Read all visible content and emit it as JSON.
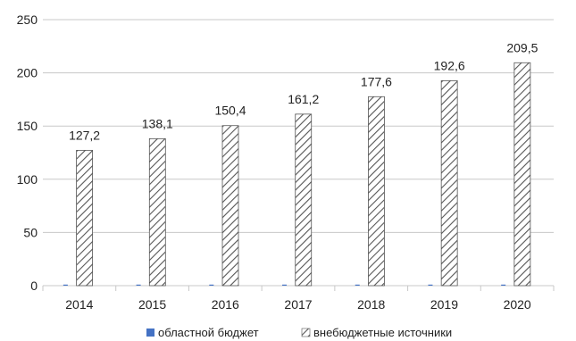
{
  "chart_data": {
    "type": "bar",
    "title": "",
    "xlabel": "",
    "ylabel": "",
    "categories": [
      "2014",
      "2015",
      "2016",
      "2017",
      "2018",
      "2019",
      "2020"
    ],
    "series": [
      {
        "name": "областной бюджет",
        "values": [
          1,
          1,
          1,
          1,
          1,
          1,
          1
        ],
        "color": "#4472c4",
        "fill": "solid"
      },
      {
        "name": "внебюджетные источники",
        "values": [
          127.2,
          138.1,
          150.4,
          161.2,
          177.6,
          192.6,
          209.5
        ],
        "color": "#555555",
        "fill": "hatched"
      }
    ],
    "data_labels": [
      "127,2",
      "138,1",
      "150,4",
      "161,2",
      "177,6",
      "192,6",
      "209,5"
    ],
    "y_ticks": [
      "0",
      "50",
      "100",
      "150",
      "200",
      "250"
    ],
    "ylim": [
      0,
      250
    ],
    "grid": true,
    "legend_position": "bottom"
  }
}
